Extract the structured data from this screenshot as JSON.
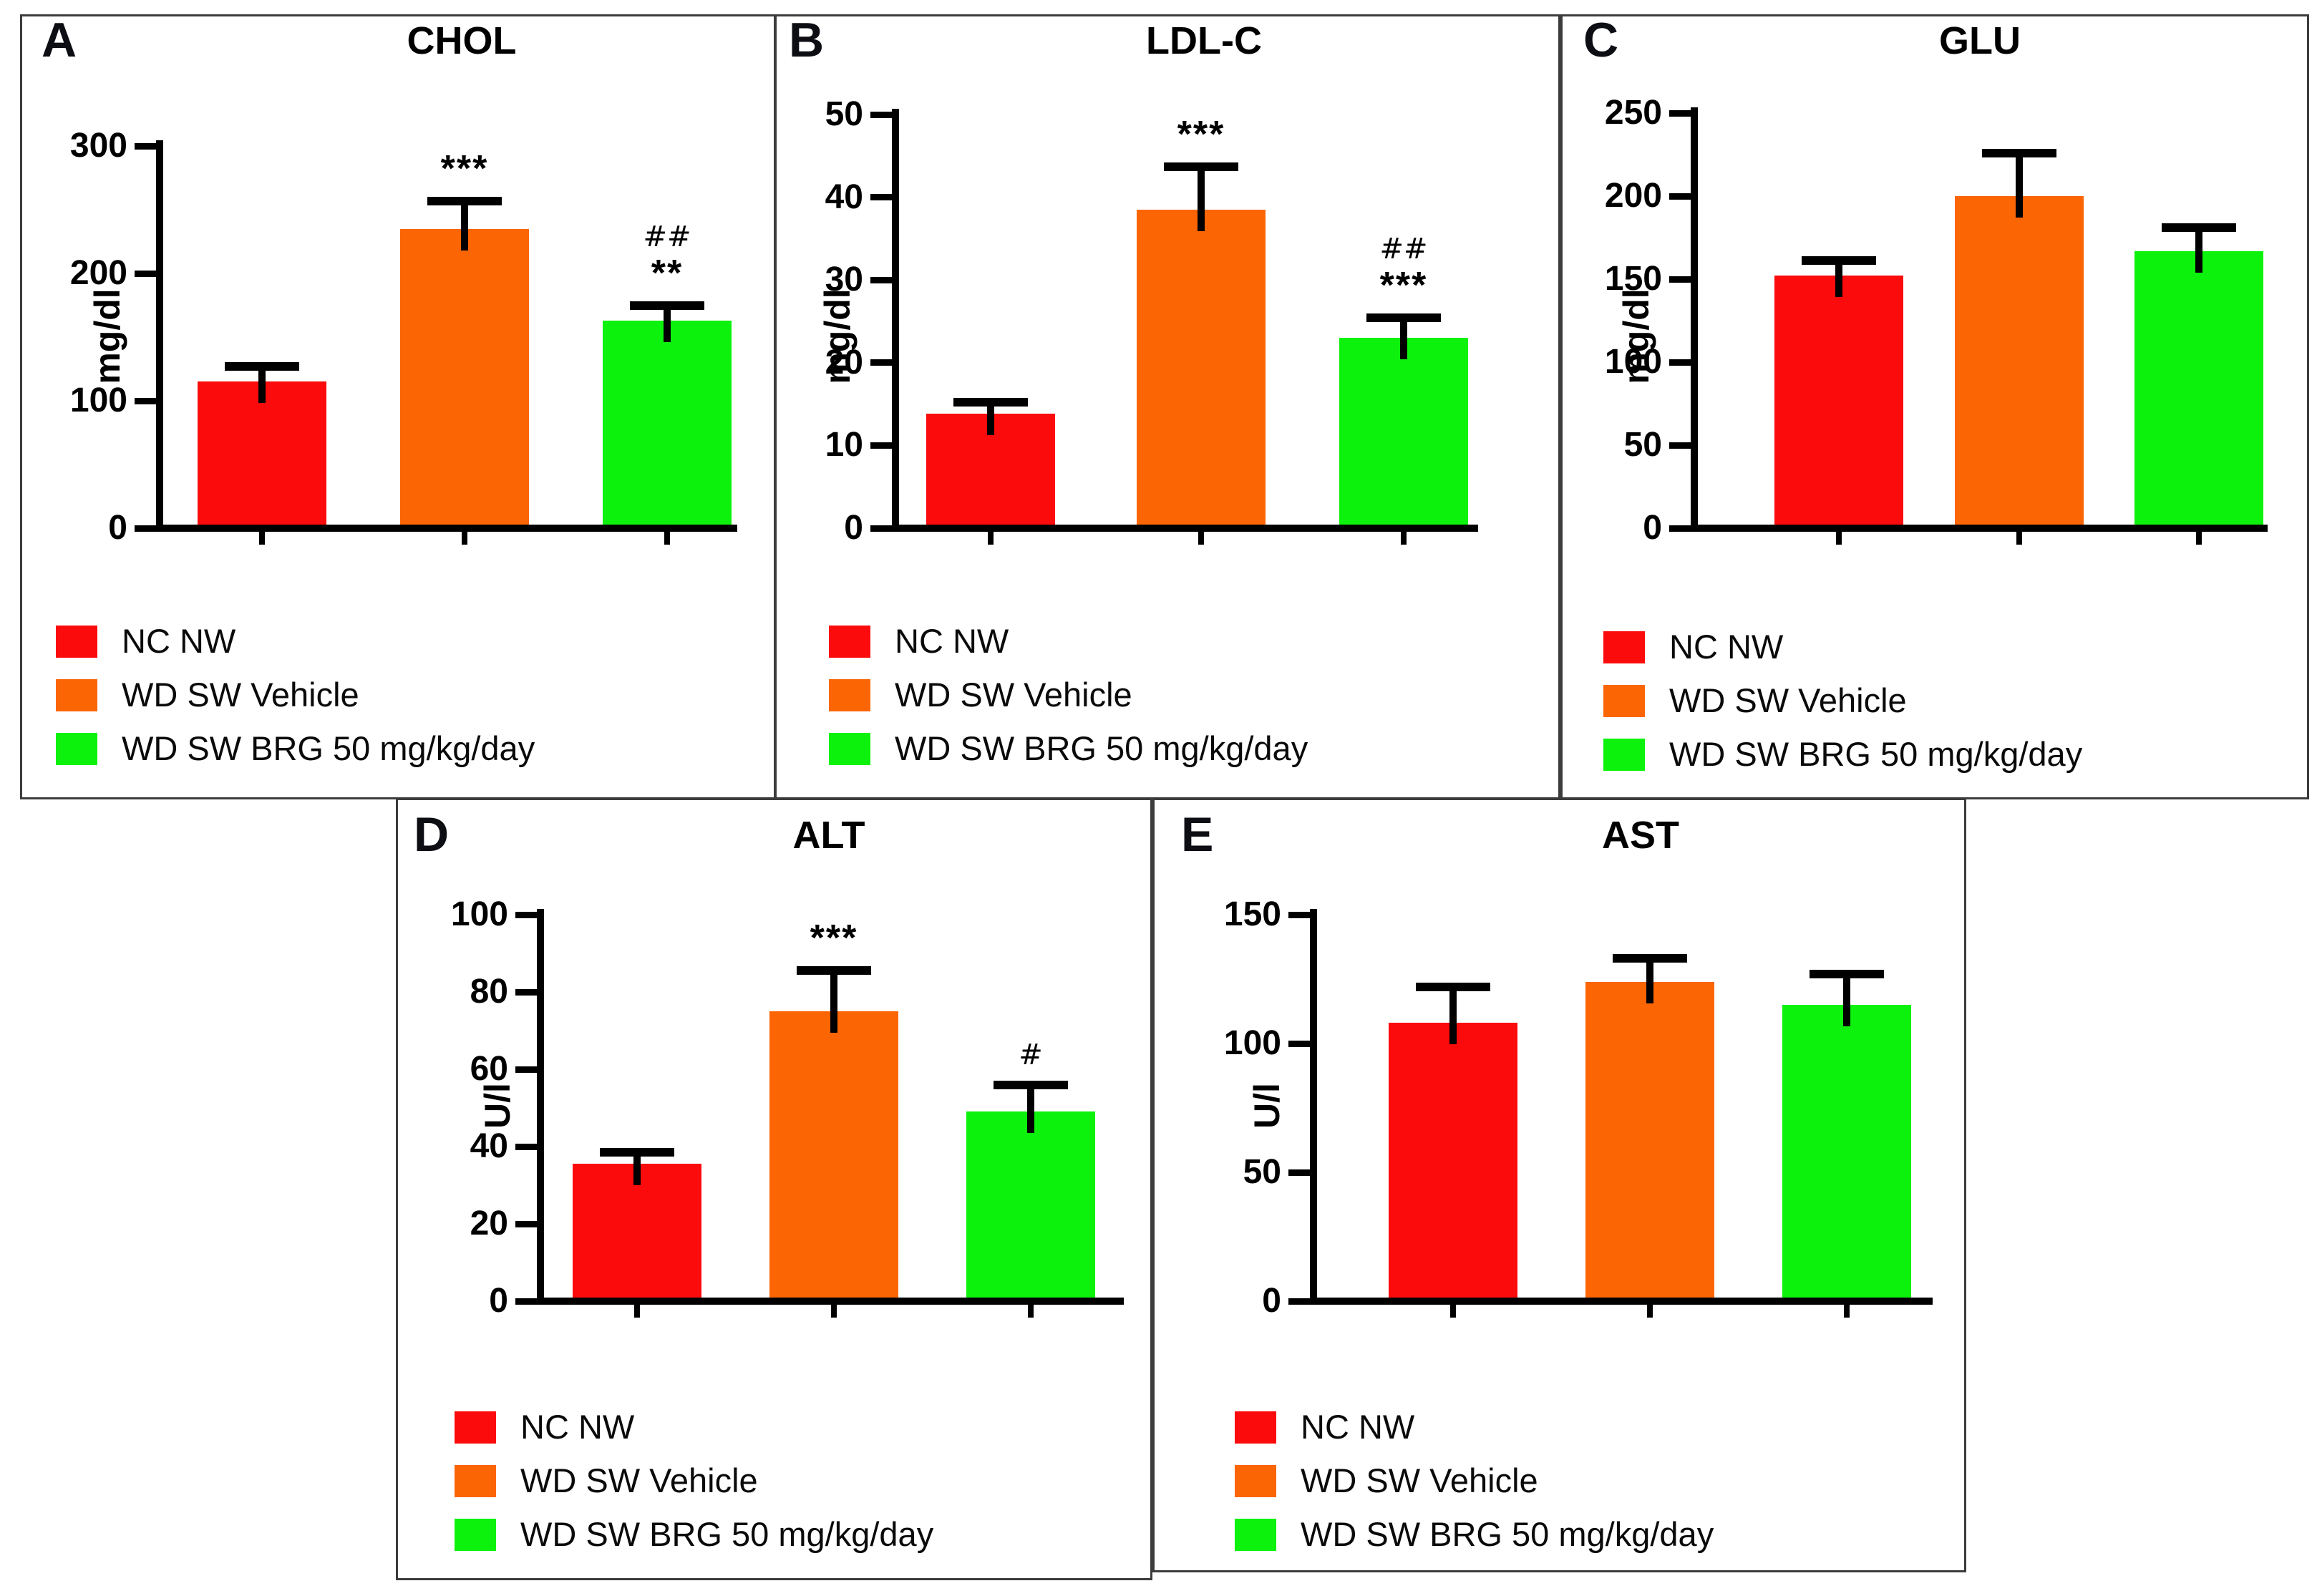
{
  "legend": {
    "items": [
      {
        "label": "NC NW",
        "color": "#fb0b0b"
      },
      {
        "label": "WD SW Vehicle",
        "color": "#fb6504"
      },
      {
        "label": "WD SW BRG 50 mg/kg/day",
        "color": "#0cf20c"
      }
    ]
  },
  "chart_data": [
    {
      "type": "bar",
      "letter": "A",
      "title": "CHOL",
      "ylabel": "mg/dl",
      "ylim": [
        0,
        300
      ],
      "yticks": [
        0,
        100,
        200,
        300
      ],
      "categories": [
        "NC NW",
        "WD SW Vehicle",
        "WD SW BRG 50 mg/kg/day"
      ],
      "values": [
        115,
        235,
        163
      ],
      "errors": [
        12,
        22,
        12
      ],
      "sig": [
        [],
        [
          "***"
        ],
        [
          "##",
          "**"
        ]
      ],
      "grid": false,
      "legend_position": "below-left"
    },
    {
      "type": "bar",
      "letter": "B",
      "title": "LDL-C",
      "ylabel": "mg/dl",
      "ylim": [
        0,
        50
      ],
      "yticks": [
        0,
        10,
        20,
        30,
        40,
        50
      ],
      "categories": [
        "NC NW",
        "WD SW Vehicle",
        "WD SW BRG 50 mg/kg/day"
      ],
      "values": [
        13.8,
        38.5,
        23
      ],
      "errors": [
        1.4,
        5.2,
        2.4
      ],
      "sig": [
        [],
        [
          "***"
        ],
        [
          "##",
          "***"
        ]
      ],
      "grid": false,
      "legend_position": "below-left"
    },
    {
      "type": "bar",
      "letter": "C",
      "title": "GLU",
      "ylabel": "mg/dl",
      "ylim": [
        0,
        250
      ],
      "yticks": [
        0,
        50,
        100,
        150,
        200,
        250
      ],
      "categories": [
        "NC NW",
        "WD SW Vehicle",
        "WD SW BRG 50 mg/kg/day"
      ],
      "values": [
        152,
        200,
        167
      ],
      "errors": [
        9,
        26,
        14
      ],
      "sig": [
        [],
        [],
        []
      ],
      "grid": false,
      "legend_position": "below-left"
    },
    {
      "type": "bar",
      "letter": "D",
      "title": "ALT",
      "ylabel": "U/l",
      "ylim": [
        0,
        100
      ],
      "yticks": [
        0,
        20,
        40,
        60,
        80,
        100
      ],
      "categories": [
        "NC NW",
        "WD SW Vehicle",
        "WD SW BRG 50 mg/kg/day"
      ],
      "values": [
        35.5,
        75,
        49
      ],
      "errors": [
        3,
        10.5,
        7
      ],
      "sig": [
        [],
        [
          "***"
        ],
        [
          "#"
        ]
      ],
      "grid": false,
      "legend_position": "below-left"
    },
    {
      "type": "bar",
      "letter": "E",
      "title": "AST",
      "ylabel": "U/l",
      "ylim": [
        0,
        150
      ],
      "yticks": [
        0,
        50,
        100,
        150
      ],
      "categories": [
        "NC NW",
        "WD SW Vehicle",
        "WD SW BRG 50 mg/kg/day"
      ],
      "values": [
        108,
        124,
        115
      ],
      "errors": [
        14,
        9,
        12
      ],
      "sig": [
        [],
        [],
        []
      ],
      "grid": false,
      "legend_position": "below-left"
    }
  ]
}
